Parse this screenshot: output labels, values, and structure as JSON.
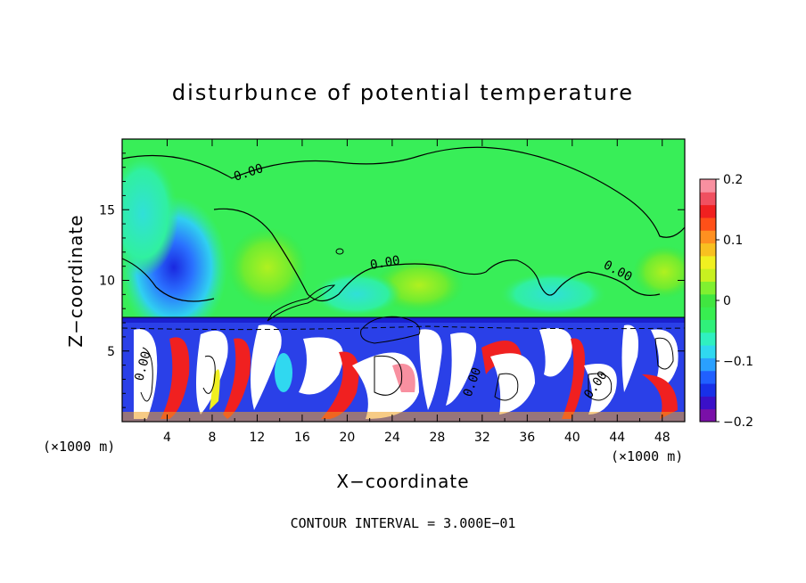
{
  "chart_data": {
    "type": "heatmap",
    "title": "disturbunce of potential temperature",
    "xlabel": "X−coordinate",
    "ylabel": "Z−coordinate",
    "x_unit_note": "(×1000 m)",
    "x_unit_note_right": "(×1000 m)",
    "xlim": [
      0,
      50
    ],
    "ylim": [
      0,
      20
    ],
    "x_ticks": [
      4,
      8,
      12,
      16,
      20,
      24,
      28,
      32,
      36,
      40,
      44,
      48
    ],
    "x_tick_labels": [
      "4",
      "8",
      "12",
      "16",
      "20",
      "24",
      "28",
      "32",
      "36",
      "40",
      "44",
      "48"
    ],
    "y_ticks": [
      5,
      10,
      15
    ],
    "y_tick_labels": [
      "5",
      "10",
      "15"
    ],
    "colorbar": {
      "min": -0.2,
      "max": 0.2,
      "ticks": [
        0.2,
        0.1,
        0,
        -0.1,
        -0.2
      ],
      "tick_labels": [
        "0.2",
        "0.1",
        "0",
        "−0.1",
        "−0.2"
      ],
      "colors": [
        "#7a10a8",
        "#3a10c8",
        "#1830e8",
        "#2060ff",
        "#2aa0ff",
        "#30d8f0",
        "#30f0c0",
        "#30f07a",
        "#38ee50",
        "#40e640",
        "#80f030",
        "#c8f020",
        "#f0f020",
        "#f8c020",
        "#ff9020",
        "#ff5018",
        "#f02020",
        "#f05060",
        "#f890a0"
      ]
    },
    "contour_labels": [
      "0.00",
      "0.00",
      "0.00",
      "0.00",
      "0.00",
      "0.00"
    ],
    "contour_interval_text": "CONTOUR INTERVAL = 3.000E−01"
  }
}
